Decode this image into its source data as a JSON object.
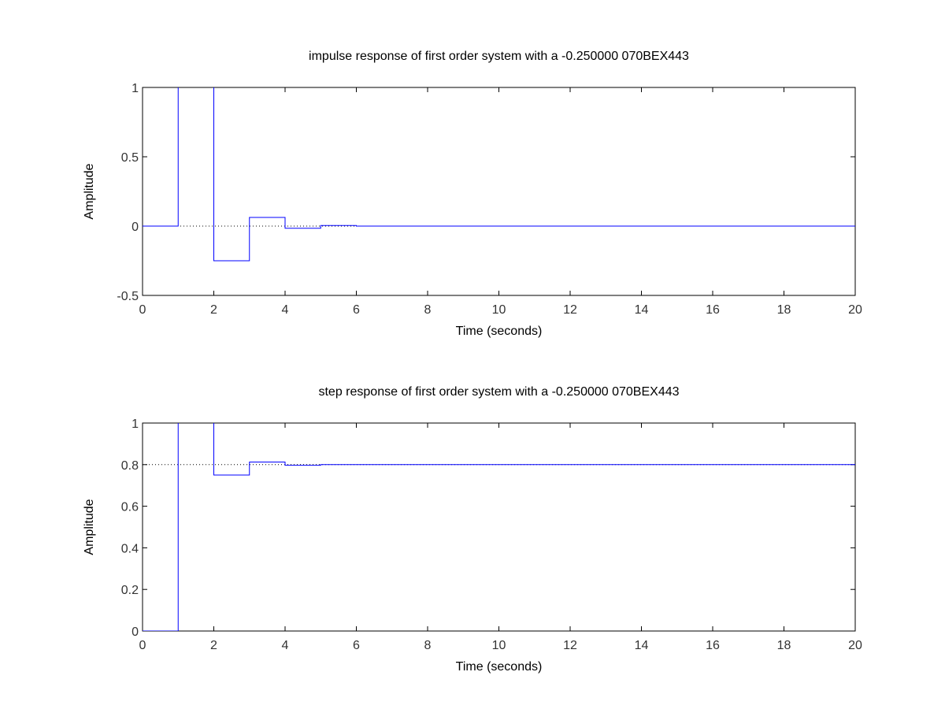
{
  "chart_data": [
    {
      "type": "line",
      "title": "impulse response of first order system with a -0.250000 070BEX443",
      "xlabel": "Time (seconds)",
      "ylabel": "Amplitude",
      "xlim": [
        0,
        20
      ],
      "ylim": [
        -0.5,
        1
      ],
      "xticks": [
        "0",
        "2",
        "4",
        "6",
        "8",
        "10",
        "12",
        "14",
        "16",
        "18",
        "20"
      ],
      "yticks": [
        "-0.5",
        "0",
        "0.5",
        "1"
      ],
      "reference_line": 0,
      "grid": false,
      "style": "stairs",
      "series": [
        {
          "color": "#0000ff",
          "x": [
            0,
            1,
            1,
            2,
            2,
            3,
            3,
            4,
            4,
            5,
            5,
            6,
            6,
            20
          ],
          "y": [
            0,
            0,
            1.05,
            1.05,
            -0.25,
            -0.25,
            0.0625,
            0.0625,
            -0.0156,
            -0.0156,
            0.0039,
            0.0039,
            0,
            0
          ]
        }
      ]
    },
    {
      "type": "line",
      "title": "step response of first order system with a -0.250000 070BEX443",
      "xlabel": "Time (seconds)",
      "ylabel": "Amplitude",
      "xlim": [
        0,
        20
      ],
      "ylim": [
        0,
        1
      ],
      "xticks": [
        "0",
        "2",
        "4",
        "6",
        "8",
        "10",
        "12",
        "14",
        "16",
        "18",
        "20"
      ],
      "yticks": [
        "0",
        "0.2",
        "0.4",
        "0.6",
        "0.8",
        "1"
      ],
      "reference_line": 0.8,
      "grid": false,
      "style": "stairs",
      "series": [
        {
          "color": "#0000ff",
          "x": [
            0,
            1,
            1,
            2,
            2,
            3,
            3,
            4,
            4,
            5,
            5,
            20
          ],
          "y": [
            0,
            0,
            1.05,
            1.05,
            0.75,
            0.75,
            0.8125,
            0.8125,
            0.7969,
            0.7969,
            0.8,
            0.8
          ]
        }
      ]
    }
  ]
}
